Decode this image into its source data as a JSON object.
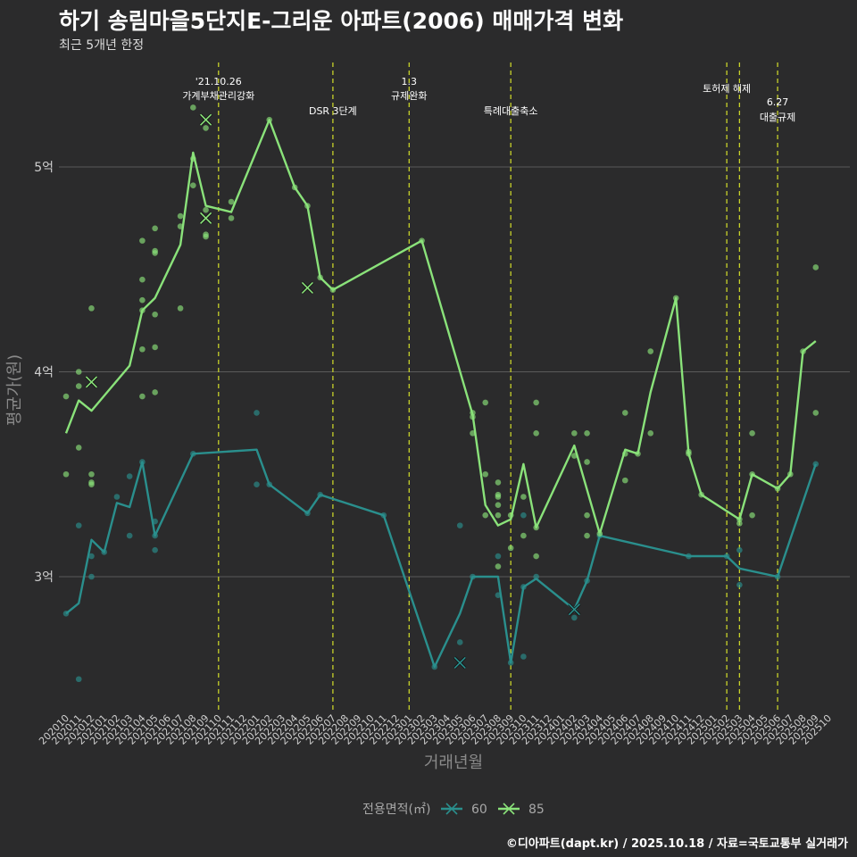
{
  "title": "하기 송림마을5단지E-그리운 아파트(2006) 매매가격 변화",
  "subtitle": "최근 5개년 한정",
  "credit": "©디아파트(dapt.kr) / 2025.10.18 / 자료=국토교통부 실거래가",
  "colors": {
    "s60": "#2a8f8d",
    "s85": "#8ae27a",
    "event": "#c8d22a",
    "grid": "#5a5a5a",
    "bg": "#2b2b2c"
  },
  "chart_data": {
    "type": "line",
    "title": "하기 송림마을5단지E-그리운 아파트(2006) 매매가격 변화",
    "xlabel": "거래년월",
    "ylabel": "평균가(원)",
    "ylim": [
      2.35,
      5.6
    ],
    "yticks": [
      {
        "v": 3,
        "label": "3억"
      },
      {
        "v": 4,
        "label": "4억"
      },
      {
        "v": 5,
        "label": "5억"
      }
    ],
    "x": [
      "202010",
      "202011",
      "202012",
      "202101",
      "202102",
      "202103",
      "202104",
      "202105",
      "202106",
      "202107",
      "202108",
      "202109",
      "202110",
      "202111",
      "202112",
      "202201",
      "202202",
      "202203",
      "202204",
      "202205",
      "202206",
      "202207",
      "202208",
      "202209",
      "202210",
      "202211",
      "202212",
      "202301",
      "202302",
      "202303",
      "202304",
      "202305",
      "202306",
      "202307",
      "202308",
      "202309",
      "202310",
      "202311",
      "202312",
      "202401",
      "202402",
      "202403",
      "202404",
      "202405",
      "202406",
      "202407",
      "202408",
      "202409",
      "202410",
      "202411",
      "202412",
      "202501",
      "202502",
      "202503",
      "202504",
      "202505",
      "202506",
      "202507",
      "202508",
      "202509",
      "202510"
    ],
    "legend_title": "전용면적(㎡)",
    "series": [
      {
        "name": "60",
        "line": [
          [
            "202010",
            2.82
          ],
          [
            "202011",
            2.87
          ],
          [
            "202012",
            3.18
          ],
          [
            "202101",
            3.12
          ],
          [
            "202102",
            3.36
          ],
          [
            "202103",
            3.34
          ],
          [
            "202104",
            3.56
          ],
          [
            "202105",
            3.2
          ],
          [
            "202108",
            3.6
          ],
          [
            "202201",
            3.62
          ],
          [
            "202202",
            3.45
          ],
          [
            "202205",
            3.31
          ],
          [
            "202206",
            3.4
          ],
          [
            "202211",
            3.3
          ],
          [
            "202303",
            2.56
          ],
          [
            "202305",
            2.82
          ],
          [
            "202306",
            3.0
          ],
          [
            "202308",
            3.0
          ],
          [
            "202309",
            2.58
          ],
          [
            "202310",
            2.95
          ],
          [
            "202311",
            2.99
          ],
          [
            "202402",
            2.84
          ],
          [
            "202403",
            2.98
          ],
          [
            "202404",
            3.2
          ],
          [
            "202411",
            3.1
          ],
          [
            "202502",
            3.1
          ],
          [
            "202503",
            3.04
          ],
          [
            "202506",
            3.0
          ],
          [
            "202509",
            3.55
          ]
        ],
        "points": [
          [
            "202010",
            2.82
          ],
          [
            "202011",
            2.5
          ],
          [
            "202011",
            3.25
          ],
          [
            "202012",
            3.1
          ],
          [
            "202012",
            3.0
          ],
          [
            "202101",
            3.12
          ],
          [
            "202102",
            3.39
          ],
          [
            "202103",
            3.2
          ],
          [
            "202103",
            3.49
          ],
          [
            "202104",
            3.56
          ],
          [
            "202105",
            3.13
          ],
          [
            "202105",
            3.27
          ],
          [
            "202105",
            3.2
          ],
          [
            "202108",
            3.6
          ],
          [
            "202201",
            3.8
          ],
          [
            "202201",
            3.45
          ],
          [
            "202202",
            3.45
          ],
          [
            "202205",
            3.31
          ],
          [
            "202206",
            3.4
          ],
          [
            "202211",
            3.3
          ],
          [
            "202303",
            2.56
          ],
          [
            "202305",
            2.68
          ],
          [
            "202305",
            3.25
          ],
          [
            "202306",
            3.0
          ],
          [
            "202308",
            2.91
          ],
          [
            "202308",
            3.1
          ],
          [
            "202309",
            2.58
          ],
          [
            "202310",
            2.61
          ],
          [
            "202310",
            3.3
          ],
          [
            "202310",
            2.95
          ],
          [
            "202311",
            3.0
          ],
          [
            "202402",
            2.8
          ],
          [
            "202402",
            2.84
          ],
          [
            "202403",
            2.98
          ],
          [
            "202404",
            3.2
          ],
          [
            "202411",
            3.1
          ],
          [
            "202502",
            3.1
          ],
          [
            "202503",
            2.96
          ],
          [
            "202503",
            3.13
          ],
          [
            "202506",
            3.0
          ],
          [
            "202509",
            3.55
          ]
        ],
        "cancelled": [
          [
            "202305",
            2.58
          ],
          [
            "202402",
            2.84
          ]
        ]
      },
      {
        "name": "85",
        "line": [
          [
            "202010",
            3.7
          ],
          [
            "202011",
            3.86
          ],
          [
            "202012",
            3.81
          ],
          [
            "202103",
            4.03
          ],
          [
            "202104",
            4.3
          ],
          [
            "202105",
            4.36
          ],
          [
            "202107",
            4.62
          ],
          [
            "202108",
            5.07
          ],
          [
            "202109",
            4.81
          ],
          [
            "202111",
            4.78
          ],
          [
            "202202",
            5.23
          ],
          [
            "202204",
            4.9
          ],
          [
            "202205",
            4.81
          ],
          [
            "202206",
            4.46
          ],
          [
            "202207",
            4.4
          ],
          [
            "202302",
            4.64
          ],
          [
            "202306",
            3.79
          ],
          [
            "202307",
            3.35
          ],
          [
            "202308",
            3.25
          ],
          [
            "202309",
            3.28
          ],
          [
            "202310",
            3.55
          ],
          [
            "202311",
            3.24
          ],
          [
            "202402",
            3.64
          ],
          [
            "202404",
            3.21
          ],
          [
            "202406",
            3.62
          ],
          [
            "202407",
            3.6
          ],
          [
            "202408",
            3.9
          ],
          [
            "202410",
            4.36
          ],
          [
            "202411",
            3.6
          ],
          [
            "202412",
            3.4
          ],
          [
            "202503",
            3.28
          ],
          [
            "202504",
            3.5
          ],
          [
            "202506",
            3.43
          ],
          [
            "202507",
            3.5
          ],
          [
            "202508",
            4.1
          ],
          [
            "202509",
            4.15
          ]
        ],
        "points": [
          [
            "202010",
            3.88
          ],
          [
            "202010",
            3.5
          ],
          [
            "202011",
            4.0
          ],
          [
            "202011",
            3.93
          ],
          [
            "202011",
            3.63
          ],
          [
            "202012",
            4.31
          ],
          [
            "202012",
            3.5
          ],
          [
            "202012",
            3.46
          ],
          [
            "202012",
            3.45
          ],
          [
            "202104",
            4.64
          ],
          [
            "202104",
            4.45
          ],
          [
            "202104",
            4.35
          ],
          [
            "202104",
            4.3
          ],
          [
            "202104",
            4.11
          ],
          [
            "202104",
            3.88
          ],
          [
            "202105",
            4.7
          ],
          [
            "202105",
            4.59
          ],
          [
            "202105",
            4.58
          ],
          [
            "202105",
            4.28
          ],
          [
            "202105",
            4.12
          ],
          [
            "202105",
            3.9
          ],
          [
            "202107",
            4.76
          ],
          [
            "202107",
            4.71
          ],
          [
            "202107",
            4.31
          ],
          [
            "202108",
            5.29
          ],
          [
            "202108",
            5.04
          ],
          [
            "202108",
            4.91
          ],
          [
            "202109",
            5.19
          ],
          [
            "202109",
            4.79
          ],
          [
            "202109",
            4.67
          ],
          [
            "202109",
            4.66
          ],
          [
            "202111",
            4.83
          ],
          [
            "202111",
            4.75
          ],
          [
            "202202",
            5.23
          ],
          [
            "202204",
            4.9
          ],
          [
            "202205",
            4.81
          ],
          [
            "202206",
            4.46
          ],
          [
            "202207",
            4.4
          ],
          [
            "202302",
            4.64
          ],
          [
            "202306",
            3.8
          ],
          [
            "202306",
            3.78
          ],
          [
            "202306",
            3.7
          ],
          [
            "202307",
            3.85
          ],
          [
            "202307",
            3.5
          ],
          [
            "202307",
            3.3
          ],
          [
            "202308",
            3.46
          ],
          [
            "202308",
            3.4
          ],
          [
            "202308",
            3.39
          ],
          [
            "202308",
            3.35
          ],
          [
            "202308",
            3.3
          ],
          [
            "202308",
            3.05
          ],
          [
            "202309",
            3.3
          ],
          [
            "202309",
            3.14
          ],
          [
            "202310",
            3.39
          ],
          [
            "202310",
            3.2
          ],
          [
            "202311",
            3.85
          ],
          [
            "202311",
            3.7
          ],
          [
            "202311",
            3.1
          ],
          [
            "202311",
            3.24
          ],
          [
            "202402",
            3.7
          ],
          [
            "202402",
            3.59
          ],
          [
            "202403",
            3.7
          ],
          [
            "202403",
            3.56
          ],
          [
            "202403",
            3.3
          ],
          [
            "202403",
            3.2
          ],
          [
            "202404",
            3.21
          ],
          [
            "202406",
            3.8
          ],
          [
            "202406",
            3.6
          ],
          [
            "202406",
            3.47
          ],
          [
            "202407",
            3.6
          ],
          [
            "202408",
            4.1
          ],
          [
            "202408",
            3.7
          ],
          [
            "202410",
            4.36
          ],
          [
            "202411",
            3.61
          ],
          [
            "202411",
            3.6
          ],
          [
            "202412",
            3.4
          ],
          [
            "202503",
            3.28
          ],
          [
            "202503",
            3.26
          ],
          [
            "202504",
            3.7
          ],
          [
            "202504",
            3.5
          ],
          [
            "202504",
            3.3
          ],
          [
            "202506",
            3.43
          ],
          [
            "202507",
            3.5
          ],
          [
            "202508",
            4.1
          ],
          [
            "202509",
            4.51
          ],
          [
            "202509",
            3.8
          ]
        ],
        "cancelled": [
          [
            "202012",
            3.95
          ],
          [
            "202109",
            5.23
          ],
          [
            "202109",
            4.75
          ],
          [
            "202205",
            4.41
          ]
        ]
      }
    ],
    "events": [
      {
        "month": "202110",
        "label_lines": [
          "'21.10.26",
          "가계부채관리강화"
        ]
      },
      {
        "month": "202207",
        "label_lines": [
          "DSR 3단계"
        ]
      },
      {
        "month": "202301",
        "label_lines": [
          "1.3",
          "규제완화"
        ]
      },
      {
        "month": "202309",
        "label_lines": [
          "특례대출축소"
        ]
      },
      {
        "month": "202502",
        "label_lines": [
          "토허제 해제"
        ]
      },
      {
        "month": "202503",
        "label_lines": []
      },
      {
        "month": "202506",
        "label_lines": [
          "6.27",
          "대출규제"
        ]
      }
    ]
  }
}
